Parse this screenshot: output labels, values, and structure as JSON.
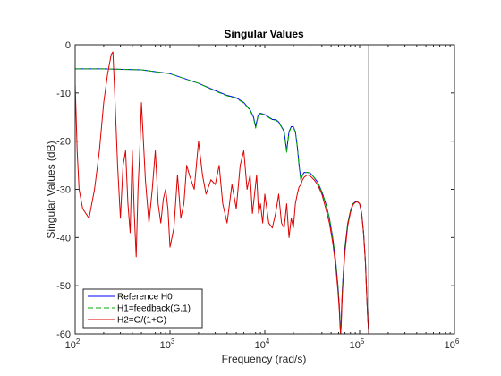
{
  "chart_data": {
    "type": "line",
    "title": "Singular Values",
    "xlabel": "Frequency (rad/s)",
    "ylabel": "Singular Values (dB)",
    "xscale": "log",
    "xlim": [
      100,
      1000000
    ],
    "ylim": [
      -60,
      0
    ],
    "xticks": [
      {
        "value": 100,
        "base": "10",
        "exp": "2"
      },
      {
        "value": 1000,
        "base": "10",
        "exp": "3"
      },
      {
        "value": 10000,
        "base": "10",
        "exp": "4"
      },
      {
        "value": 100000,
        "base": "10",
        "exp": "5"
      },
      {
        "value": 1000000,
        "base": "10",
        "exp": "6"
      }
    ],
    "yticks": [
      {
        "value": 0,
        "label": "0"
      },
      {
        "value": -10,
        "label": "-10"
      },
      {
        "value": -20,
        "label": "-20"
      },
      {
        "value": -30,
        "label": "-30"
      },
      {
        "value": -40,
        "label": "-40"
      },
      {
        "value": -50,
        "label": "-50"
      },
      {
        "value": -60,
        "label": "-60"
      }
    ],
    "grid": false,
    "legend_position": "bottom-left",
    "series": [
      {
        "name": "Reference H0",
        "color": "#0000ff",
        "dash": "",
        "x": [
          100,
          200,
          500,
          1000,
          2000,
          3000,
          4000,
          5000,
          6000,
          7000,
          7600,
          8000,
          8500,
          9000,
          10000,
          11000,
          12000,
          13000,
          14000,
          15000,
          16000,
          17000,
          18000,
          19000,
          20000,
          21000,
          22000,
          23000,
          24000,
          25000,
          26000,
          27000,
          28000,
          30000,
          33000,
          36000,
          40000,
          44000,
          48000,
          52000,
          56000,
          59000,
          61000,
          62000,
          63000,
          64000,
          65000,
          66000,
          70000,
          75000,
          80000,
          85000,
          90000,
          95000,
          100000,
          105000,
          110000,
          115000,
          120000,
          122000,
          124000,
          125000
        ],
        "y": [
          -5,
          -5,
          -5.2,
          -6,
          -8,
          -9.5,
          -10.5,
          -11,
          -12,
          -13.5,
          -15,
          -17,
          -14.6,
          -14.2,
          -14.5,
          -15,
          -15.5,
          -15.5,
          -16,
          -17,
          -18,
          -22,
          -18,
          -17,
          -17,
          -18,
          -21,
          -25,
          -28,
          -27,
          -26.5,
          -26.5,
          -26.5,
          -26.6,
          -27.5,
          -28.5,
          -30.5,
          -33,
          -36,
          -40,
          -45,
          -50,
          -54,
          -57,
          -60,
          -57,
          -53,
          -50,
          -42,
          -37,
          -34.5,
          -33,
          -32.6,
          -32.6,
          -33,
          -35,
          -39,
          -45,
          -54,
          -57,
          -59,
          -60
        ]
      },
      {
        "name": "H1=feedback(G,1)",
        "color": "#00aa00",
        "dash": "6,3",
        "x": [
          100,
          200,
          500,
          1000,
          2000,
          3000,
          4000,
          5000,
          6000,
          7000,
          7600,
          8000,
          8500,
          9000,
          10000,
          11000,
          12000,
          13000,
          14000,
          15000,
          16000,
          17000,
          18000,
          19000,
          20000,
          21000,
          22000,
          23000,
          24000,
          25000,
          26000,
          27000,
          28000,
          30000,
          33000,
          36000,
          40000,
          44000,
          48000,
          52000,
          56000,
          59000,
          61000,
          62000,
          63000,
          64000,
          65000,
          66000,
          70000,
          75000,
          80000,
          85000,
          90000,
          95000,
          100000,
          105000,
          110000,
          115000,
          120000,
          122000,
          124000,
          125000
        ],
        "y": [
          -5,
          -5,
          -5.2,
          -6,
          -8,
          -9.6,
          -10.6,
          -11.1,
          -12.1,
          -13.6,
          -15.2,
          -17.3,
          -14.8,
          -14.3,
          -14.6,
          -15.1,
          -15.6,
          -15.6,
          -16.1,
          -17.1,
          -18.2,
          -22.3,
          -18.2,
          -17.1,
          -17.1,
          -18.2,
          -21.2,
          -25.3,
          -28.2,
          -27.1,
          -26.6,
          -26.5,
          -26.5,
          -26.6,
          -27.5,
          -28.5,
          -30.5,
          -33,
          -36,
          -40,
          -45,
          -50,
          -54,
          -57,
          -60,
          -57,
          -53,
          -50,
          -42,
          -37,
          -34.5,
          -33,
          -32.6,
          -32.6,
          -33,
          -35,
          -39,
          -45,
          -54,
          -57,
          -59,
          -60
        ]
      },
      {
        "name": "H2=G/(1+G)",
        "color": "#dd0000",
        "dash": "",
        "x": [
          100,
          105,
          110,
          120,
          140,
          160,
          180,
          200,
          220,
          240,
          250,
          260,
          280,
          300,
          320,
          340,
          360,
          380,
          400,
          420,
          440,
          460,
          480,
          500,
          550,
          600,
          650,
          700,
          750,
          800,
          850,
          900,
          950,
          1000,
          1100,
          1200,
          1300,
          1400,
          1500,
          1600,
          1800,
          2000,
          2200,
          2400,
          2700,
          3000,
          3300,
          3600,
          4000,
          4500,
          5000,
          5500,
          6000,
          6500,
          7000,
          7400,
          7800,
          8200,
          8600,
          9000,
          9500,
          10000,
          11000,
          12000,
          13000,
          14000,
          15000,
          16000,
          17000,
          18000,
          19000,
          20000,
          21000,
          22000,
          23000,
          24000,
          25000,
          26000,
          28000,
          30000,
          33000,
          36000,
          40000,
          44000,
          48000,
          52000,
          56000,
          59000,
          61000,
          62000,
          63000,
          64000,
          65000,
          66000,
          70000,
          75000,
          80000,
          85000,
          90000,
          95000,
          100000,
          105000,
          110000,
          115000,
          120000,
          122000,
          124000,
          125000
        ],
        "y": [
          -8,
          -22,
          -30,
          -34,
          -36,
          -30,
          -22,
          -12,
          -6,
          -2,
          -1.5,
          -9,
          -25,
          -36,
          -25,
          -22,
          -33,
          -39,
          -22,
          -35,
          -44,
          -30,
          -22,
          -12,
          -28,
          -37,
          -30,
          -22,
          -33,
          -37,
          -32,
          -30,
          -34,
          -42,
          -38,
          -27,
          -36,
          -33,
          -25,
          -27,
          -30,
          -20,
          -27,
          -31,
          -28,
          -29,
          -25,
          -33,
          -37,
          -29,
          -34,
          -25,
          -22,
          -30,
          -27,
          -35,
          -31,
          -27,
          -35,
          -33,
          -37,
          -31,
          -37,
          -38,
          -35,
          -31,
          -37,
          -38,
          -33,
          -40,
          -36,
          -38,
          -33,
          -31,
          -29.5,
          -29,
          -28,
          -27.5,
          -27,
          -27.2,
          -28,
          -29,
          -31,
          -34,
          -37,
          -41,
          -46,
          -51,
          -55,
          -58,
          -60,
          -58,
          -54,
          -51,
          -43,
          -37.5,
          -34.8,
          -33.2,
          -32.7,
          -32.6,
          -33,
          -35,
          -39,
          -45,
          -54,
          -57,
          -59,
          -60
        ]
      }
    ],
    "vline": {
      "x": 125000,
      "color": "#000000"
    }
  }
}
